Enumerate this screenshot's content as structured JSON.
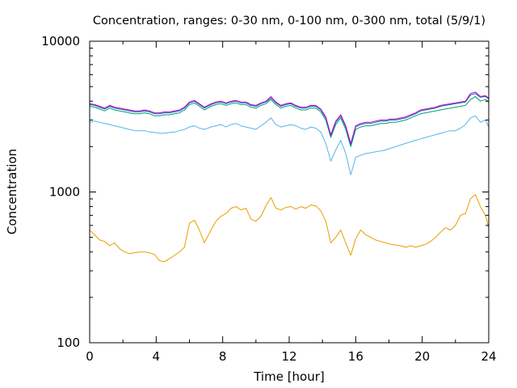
{
  "chart_data": {
    "type": "line",
    "title": "Concentration, ranges: 0-30 nm, 0-100 nm, 0-300 nm, total (5/9/1)",
    "xlabel": "Time [hour]",
    "ylabel": "Concentration",
    "xlim": [
      0,
      24
    ],
    "ylim": [
      100,
      10000
    ],
    "yscale": "log",
    "grid": false,
    "legend": "none",
    "x_ticks": [
      "0",
      "4",
      "8",
      "12",
      "16",
      "20",
      "24"
    ],
    "y_ticks": [
      "100",
      "1000",
      "10000"
    ],
    "series": [
      {
        "color": "#e69f00",
        "x": [
          0,
          0.3,
          0.6,
          0.9,
          1.2,
          1.5,
          1.8,
          2.1,
          2.4,
          2.7,
          3,
          3.3,
          3.6,
          3.9,
          4.2,
          4.5,
          4.8,
          5.1,
          5.4,
          5.7,
          6,
          6.3,
          6.6,
          6.9,
          7.3,
          7.6,
          7.9,
          8.2,
          8.5,
          8.8,
          9.1,
          9.4,
          9.7,
          10,
          10.3,
          10.6,
          10.9,
          11.2,
          11.5,
          11.8,
          12.1,
          12.4,
          12.7,
          13,
          13.3,
          13.6,
          13.9,
          14.2,
          14.5,
          14.8,
          15.1,
          15.4,
          15.7,
          16,
          16.3,
          16.6,
          16.9,
          17.2,
          17.5,
          17.8,
          18.1,
          18.4,
          18.7,
          19,
          19.3,
          19.6,
          19.9,
          20.2,
          20.5,
          20.8,
          21.1,
          21.4,
          21.7,
          22,
          22.3,
          22.6,
          22.9,
          23.2,
          23.5,
          23.8,
          24
        ],
        "y": [
          560,
          520,
          480,
          470,
          440,
          460,
          420,
          400,
          390,
          395,
          400,
          400,
          395,
          385,
          350,
          345,
          360,
          380,
          400,
          430,
          620,
          650,
          560,
          460,
          560,
          640,
          690,
          720,
          780,
          800,
          760,
          780,
          660,
          640,
          690,
          810,
          920,
          780,
          760,
          790,
          800,
          770,
          800,
          780,
          820,
          810,
          750,
          640,
          460,
          500,
          560,
          460,
          380,
          490,
          560,
          520,
          500,
          480,
          470,
          460,
          450,
          445,
          440,
          430,
          440,
          430,
          440,
          450,
          470,
          500,
          540,
          580,
          560,
          600,
          700,
          720,
          900,
          960,
          800,
          700,
          580
        ]
      },
      {
        "color": "#56b4e9",
        "x": [
          0,
          0.3,
          0.6,
          0.9,
          1.2,
          1.5,
          1.8,
          2.1,
          2.4,
          2.7,
          3,
          3.3,
          3.6,
          3.9,
          4.2,
          4.5,
          4.8,
          5.1,
          5.4,
          5.7,
          6,
          6.3,
          6.6,
          6.9,
          7.3,
          7.6,
          7.9,
          8.2,
          8.5,
          8.8,
          9.1,
          9.4,
          9.7,
          10,
          10.3,
          10.6,
          10.9,
          11.2,
          11.5,
          11.8,
          12.1,
          12.4,
          12.7,
          13,
          13.3,
          13.6,
          13.9,
          14.2,
          14.5,
          14.8,
          15.1,
          15.4,
          15.7,
          16,
          16.3,
          16.6,
          16.9,
          17.2,
          17.5,
          17.8,
          18.1,
          18.4,
          18.7,
          19,
          19.3,
          19.6,
          19.9,
          20.2,
          20.5,
          20.8,
          21.1,
          21.4,
          21.7,
          22,
          22.3,
          22.6,
          22.9,
          23.2,
          23.5,
          23.8,
          24
        ],
        "y": [
          2900,
          2950,
          2900,
          2850,
          2800,
          2750,
          2700,
          2650,
          2600,
          2550,
          2550,
          2550,
          2500,
          2480,
          2450,
          2450,
          2480,
          2500,
          2550,
          2600,
          2700,
          2750,
          2650,
          2600,
          2700,
          2750,
          2800,
          2700,
          2800,
          2850,
          2750,
          2700,
          2650,
          2600,
          2750,
          2900,
          3100,
          2800,
          2700,
          2750,
          2800,
          2750,
          2650,
          2600,
          2700,
          2650,
          2500,
          2100,
          1600,
          1900,
          2200,
          1800,
          1300,
          1700,
          1750,
          1800,
          1820,
          1850,
          1870,
          1900,
          1950,
          2000,
          2050,
          2100,
          2150,
          2200,
          2250,
          2300,
          2350,
          2400,
          2450,
          2500,
          2550,
          2550,
          2650,
          2800,
          3100,
          3200,
          2900,
          3000,
          2700
        ]
      },
      {
        "color": "#009e73",
        "x": [
          0,
          0.3,
          0.6,
          0.9,
          1.2,
          1.5,
          1.8,
          2.1,
          2.4,
          2.7,
          3,
          3.3,
          3.6,
          3.9,
          4.2,
          4.5,
          4.8,
          5.1,
          5.4,
          5.7,
          6,
          6.3,
          6.6,
          6.9,
          7.3,
          7.6,
          7.9,
          8.2,
          8.5,
          8.8,
          9.1,
          9.4,
          9.7,
          10,
          10.3,
          10.6,
          10.9,
          11.2,
          11.5,
          11.8,
          12.1,
          12.4,
          12.7,
          13,
          13.3,
          13.6,
          13.9,
          14.2,
          14.5,
          14.8,
          15.1,
          15.4,
          15.7,
          16,
          16.3,
          16.6,
          16.9,
          17.2,
          17.5,
          17.8,
          18.1,
          18.4,
          18.7,
          19,
          19.3,
          19.6,
          19.9,
          20.2,
          20.5,
          20.8,
          21.1,
          21.4,
          21.7,
          22,
          22.3,
          22.6,
          22.9,
          23.2,
          23.5,
          23.8,
          24
        ],
        "y": [
          3700,
          3650,
          3550,
          3450,
          3600,
          3500,
          3450,
          3400,
          3350,
          3300,
          3300,
          3350,
          3300,
          3200,
          3200,
          3250,
          3250,
          3300,
          3350,
          3500,
          3800,
          3900,
          3700,
          3500,
          3700,
          3800,
          3850,
          3750,
          3850,
          3900,
          3800,
          3800,
          3650,
          3600,
          3750,
          3850,
          4100,
          3800,
          3600,
          3700,
          3750,
          3600,
          3500,
          3500,
          3600,
          3600,
          3400,
          3000,
          2300,
          2800,
          3100,
          2600,
          2000,
          2600,
          2700,
          2750,
          2750,
          2800,
          2850,
          2850,
          2900,
          2900,
          2950,
          3000,
          3100,
          3200,
          3300,
          3350,
          3400,
          3450,
          3500,
          3550,
          3600,
          3650,
          3700,
          3750,
          4100,
          4300,
          4000,
          4100,
          3950
        ]
      },
      {
        "color": "#0072b2",
        "x": [
          0,
          0.3,
          0.6,
          0.9,
          1.2,
          1.5,
          1.8,
          2.1,
          2.4,
          2.7,
          3,
          3.3,
          3.6,
          3.9,
          4.2,
          4.5,
          4.8,
          5.1,
          5.4,
          5.7,
          6,
          6.3,
          6.6,
          6.9,
          7.3,
          7.6,
          7.9,
          8.2,
          8.5,
          8.8,
          9.1,
          9.4,
          9.7,
          10,
          10.3,
          10.6,
          10.9,
          11.2,
          11.5,
          11.8,
          12.1,
          12.4,
          12.7,
          13,
          13.3,
          13.6,
          13.9,
          14.2,
          14.5,
          14.8,
          15.1,
          15.4,
          15.7,
          16,
          16.3,
          16.6,
          16.9,
          17.2,
          17.5,
          17.8,
          18.1,
          18.4,
          18.7,
          19,
          19.3,
          19.6,
          19.9,
          20.2,
          20.5,
          20.8,
          21.1,
          21.4,
          21.7,
          22,
          22.3,
          22.6,
          22.9,
          23.2,
          23.5,
          23.8,
          24
        ],
        "y": [
          3800,
          3750,
          3650,
          3550,
          3700,
          3600,
          3550,
          3500,
          3450,
          3400,
          3400,
          3450,
          3400,
          3300,
          3300,
          3350,
          3350,
          3400,
          3450,
          3600,
          3900,
          4000,
          3800,
          3600,
          3800,
          3900,
          3950,
          3850,
          3950,
          4000,
          3900,
          3900,
          3750,
          3700,
          3850,
          3950,
          4200,
          3900,
          3700,
          3800,
          3850,
          3700,
          3600,
          3600,
          3700,
          3700,
          3500,
          3100,
          2350,
          2900,
          3200,
          2700,
          2050,
          2700,
          2800,
          2850,
          2850,
          2900,
          2950,
          2950,
          3000,
          3000,
          3050,
          3100,
          3200,
          3300,
          3450,
          3500,
          3550,
          3600,
          3700,
          3750,
          3800,
          3850,
          3900,
          3950,
          4400,
          4500,
          4250,
          4300,
          4150
        ]
      },
      {
        "color": "#cc00cc",
        "x": [
          0,
          0.3,
          0.6,
          0.9,
          1.2,
          1.5,
          1.8,
          2.1,
          2.4,
          2.7,
          3,
          3.3,
          3.6,
          3.9,
          4.2,
          4.5,
          4.8,
          5.1,
          5.4,
          5.7,
          6,
          6.3,
          6.6,
          6.9,
          7.3,
          7.6,
          7.9,
          8.2,
          8.5,
          8.8,
          9.1,
          9.4,
          9.7,
          10,
          10.3,
          10.6,
          10.9,
          11.2,
          11.5,
          11.8,
          12.1,
          12.4,
          12.7,
          13,
          13.3,
          13.6,
          13.9,
          14.2,
          14.5,
          14.8,
          15.1,
          15.4,
          15.7,
          16,
          16.3,
          16.6,
          16.9,
          17.2,
          17.5,
          17.8,
          18.1,
          18.4,
          18.7,
          19,
          19.3,
          19.6,
          19.9,
          20.2,
          20.5,
          20.8,
          21.1,
          21.4,
          21.7,
          22,
          22.3,
          22.6,
          22.9,
          23.2,
          23.5,
          23.8,
          24
        ],
        "y": [
          3850,
          3800,
          3700,
          3600,
          3750,
          3650,
          3600,
          3550,
          3500,
          3450,
          3450,
          3500,
          3450,
          3350,
          3350,
          3400,
          3400,
          3450,
          3500,
          3650,
          3950,
          4050,
          3850,
          3650,
          3850,
          3950,
          4000,
          3900,
          4000,
          4050,
          3950,
          3950,
          3800,
          3750,
          3900,
          4000,
          4300,
          3950,
          3750,
          3850,
          3900,
          3750,
          3650,
          3650,
          3750,
          3750,
          3550,
          3150,
          2400,
          2950,
          3250,
          2750,
          2100,
          2750,
          2850,
          2900,
          2900,
          2950,
          3000,
          3000,
          3050,
          3050,
          3100,
          3150,
          3250,
          3350,
          3500,
          3550,
          3600,
          3650,
          3750,
          3800,
          3850,
          3900,
          3950,
          4000,
          4500,
          4600,
          4300,
          4350,
          4200
        ]
      }
    ]
  }
}
